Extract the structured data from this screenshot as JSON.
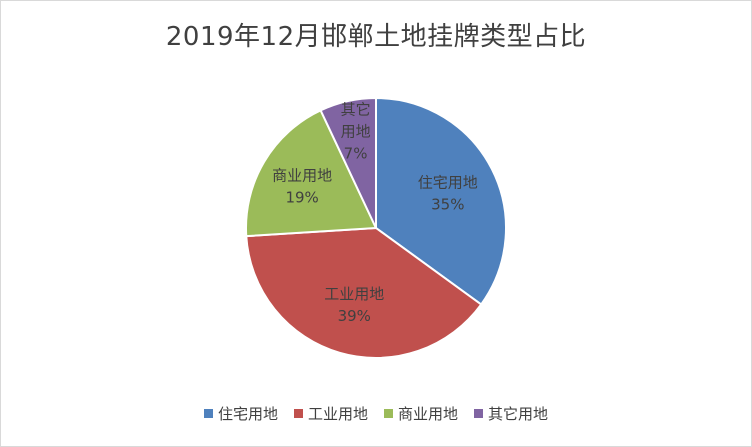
{
  "chart_data": {
    "type": "pie",
    "title": "2019年12月邯郸土地挂牌类型占比",
    "slices": [
      {
        "label": "住宅用地",
        "percent_label": "35%",
        "value": 35,
        "color": "#4f81bd"
      },
      {
        "label": "工业用地",
        "percent_label": "39%",
        "value": 39,
        "color": "#c0504d"
      },
      {
        "label": "商业用地",
        "percent_label": "19%",
        "value": 19,
        "color": "#9bbb59"
      },
      {
        "label": "其它用地",
        "percent_label": "7%",
        "value": 7,
        "color": "#8064a2"
      }
    ],
    "legend_position": "bottom"
  }
}
